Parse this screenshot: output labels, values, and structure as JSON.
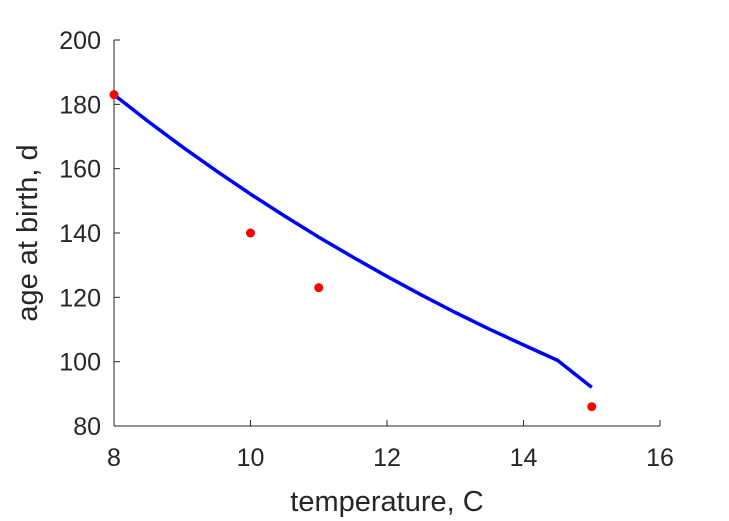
{
  "chart_data": {
    "type": "scatter",
    "xlabel": "temperature, C",
    "ylabel": "age at birth, d",
    "xlim": [
      8,
      16
    ],
    "ylim": [
      80,
      200
    ],
    "xticks": [
      8,
      10,
      12,
      14,
      16
    ],
    "yticks": [
      80,
      100,
      120,
      140,
      160,
      180,
      200
    ],
    "xtick_labels": [
      "8",
      "10",
      "12",
      "14",
      "16"
    ],
    "ytick_labels": [
      "80",
      "100",
      "120",
      "140",
      "160",
      "180",
      "200"
    ],
    "grid": false,
    "box": false,
    "series": [
      {
        "kind": "scatter",
        "color": "#ff0000",
        "points": [
          {
            "x": 8,
            "y": 183
          },
          {
            "x": 10,
            "y": 140
          },
          {
            "x": 11,
            "y": 123
          },
          {
            "x": 15,
            "y": 86
          }
        ]
      },
      {
        "kind": "line",
        "color": "#0000ff",
        "points": [
          {
            "x": 8,
            "y": 183
          },
          {
            "x": 8.5,
            "y": 174.7
          },
          {
            "x": 9,
            "y": 166.8
          },
          {
            "x": 9.5,
            "y": 159.3
          },
          {
            "x": 10,
            "y": 152.1
          },
          {
            "x": 10.5,
            "y": 145.3
          },
          {
            "x": 11,
            "y": 138.7
          },
          {
            "x": 11.5,
            "y": 132.5
          },
          {
            "x": 12,
            "y": 126.5
          },
          {
            "x": 12.5,
            "y": 120.8
          },
          {
            "x": 13,
            "y": 115.3
          },
          {
            "x": 13.5,
            "y": 110.1
          },
          {
            "x": 14,
            "y": 105.2
          },
          {
            "x": 14.5,
            "y": 100.4
          },
          {
            "x": 15,
            "y": 92
          }
        ]
      }
    ]
  }
}
